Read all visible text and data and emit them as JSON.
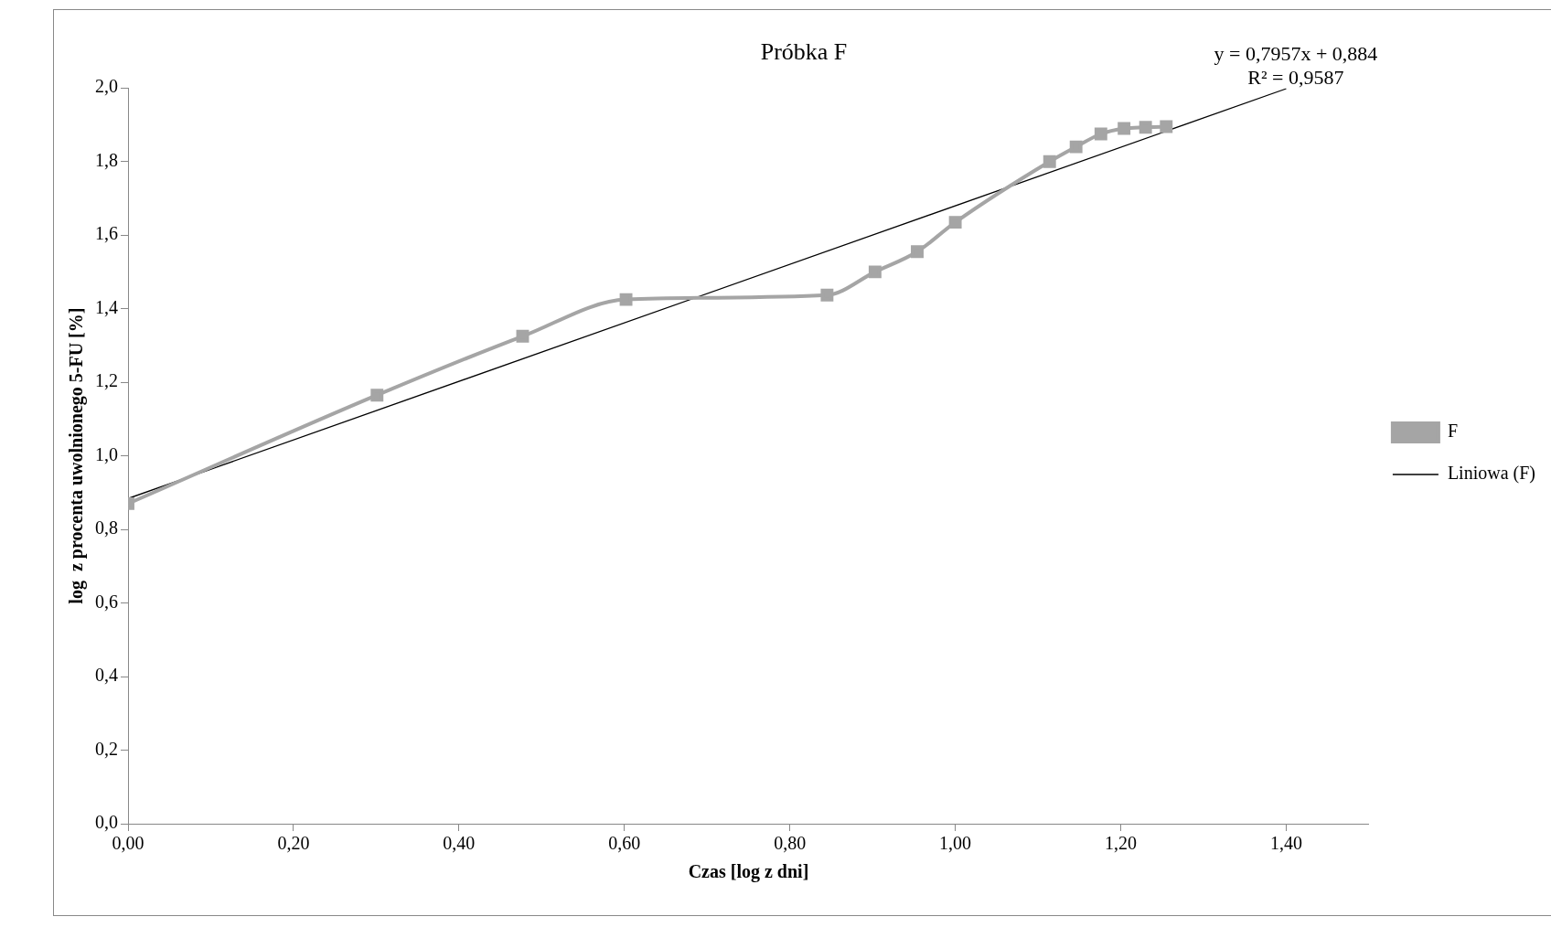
{
  "chart_data": {
    "type": "line",
    "title": "Próbka F",
    "xlabel": "Czas [log z dni]",
    "ylabel": "log  z procenta uwolnionego 5-FU [%]",
    "x": [
      0,
      0.301,
      0.477,
      0.602,
      0.845,
      0.903,
      0.954,
      1.0,
      1.114,
      1.146,
      1.176,
      1.204,
      1.23,
      1.255
    ],
    "series": [
      {
        "name": "F",
        "color": "#a5a5a5",
        "marker": "square",
        "values": [
          0.87,
          1.165,
          1.325,
          1.425,
          1.437,
          1.5,
          1.555,
          1.635,
          1.8,
          1.84,
          1.875,
          1.89,
          1.893,
          1.895
        ]
      },
      {
        "name": "Liniowa (F)",
        "color": "#000000",
        "marker": "none",
        "x": [
          0,
          1.4
        ],
        "values": [
          0.884,
          1.998
        ]
      }
    ],
    "xlim": [
      0,
      1.5
    ],
    "xticks": [
      {
        "value": 0,
        "label": "0,00"
      },
      {
        "value": 0.2,
        "label": "0,20"
      },
      {
        "value": 0.4,
        "label": "0,40"
      },
      {
        "value": 0.6,
        "label": "0,60"
      },
      {
        "value": 0.8,
        "label": "0,80"
      },
      {
        "value": 1.0,
        "label": "1,00"
      },
      {
        "value": 1.2,
        "label": "1,20"
      },
      {
        "value": 1.4,
        "label": "1,40"
      }
    ],
    "ylim": [
      0,
      2
    ],
    "yticks": [
      {
        "value": 0,
        "label": "0,0"
      },
      {
        "value": 0.2,
        "label": "0,2"
      },
      {
        "value": 0.4,
        "label": "0,4"
      },
      {
        "value": 0.6,
        "label": "0,6"
      },
      {
        "value": 0.8,
        "label": "0,8"
      },
      {
        "value": 1.0,
        "label": "1,0"
      },
      {
        "value": 1.2,
        "label": "1,2"
      },
      {
        "value": 1.4,
        "label": "1,4"
      },
      {
        "value": 1.6,
        "label": "1,6"
      },
      {
        "value": 1.8,
        "label": "1,8"
      },
      {
        "value": 2.0,
        "label": "2,0"
      }
    ],
    "grid": false,
    "legend": "right",
    "annotations": [
      "y = 0,7957x + 0,884",
      "R² = 0,9587"
    ]
  }
}
